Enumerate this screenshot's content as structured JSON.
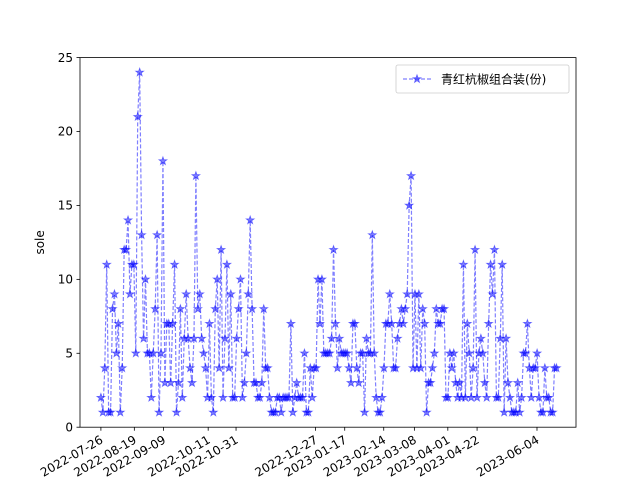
{
  "chart_data": {
    "type": "line",
    "title": "",
    "xlabel": "",
    "ylabel": "sole",
    "xlim": [
      "2022-07-11",
      "2023-07-02"
    ],
    "ylim": [
      0,
      25
    ],
    "x_ticks": [
      "2022-07-26",
      "2022-08-19",
      "2022-09-09",
      "2022-10-11",
      "2022-10-31",
      "2022-12-27",
      "2023-01-17",
      "2023-02-14",
      "2023-03-08",
      "2023-04-01",
      "2023-04-22",
      "2023-06-04"
    ],
    "y_ticks": [
      0,
      5,
      10,
      15,
      20,
      25
    ],
    "grid": false,
    "legend": "top-right",
    "series": [
      {
        "name": "青红杭椒组合装(份)",
        "color": "#0000ff",
        "marker": "star",
        "line_style": "dashed",
        "values": [
          2,
          1,
          4,
          11,
          1,
          1,
          8,
          9,
          5,
          7,
          1,
          4,
          12,
          12,
          14,
          9,
          11,
          11,
          5,
          21,
          24,
          13,
          6,
          10,
          5,
          5,
          2,
          5,
          8,
          13,
          1,
          5,
          18,
          3,
          7,
          7,
          3,
          7,
          11,
          1,
          3,
          8,
          2,
          6,
          9,
          6,
          4,
          3,
          6,
          17,
          8,
          9,
          6,
          5,
          4,
          2,
          7,
          2,
          1,
          8,
          10,
          4,
          12,
          2,
          6,
          11,
          4,
          9,
          2,
          2,
          6,
          8,
          10,
          2,
          3,
          5,
          9,
          14,
          8,
          3,
          3,
          2,
          2,
          3,
          8,
          4,
          4,
          2,
          1,
          1,
          1,
          2,
          2,
          1,
          2,
          2,
          2,
          2,
          7,
          1,
          2,
          3,
          2,
          2,
          2,
          5,
          1,
          1,
          4,
          2,
          4,
          4,
          10,
          7,
          10,
          5,
          5,
          5,
          5,
          6,
          12,
          7,
          4,
          6,
          5,
          5,
          5,
          5,
          4,
          3,
          7,
          7,
          4,
          3,
          5,
          5,
          1,
          6,
          5,
          5,
          13,
          5,
          2,
          1,
          1,
          2,
          4,
          7,
          7,
          9,
          7,
          4,
          4,
          6,
          7,
          8,
          7,
          8,
          9,
          15,
          17,
          4,
          9,
          4,
          9,
          4,
          8,
          7,
          1,
          3,
          3,
          4,
          5,
          8,
          7,
          7,
          8,
          8,
          2,
          2,
          5,
          4,
          5,
          3,
          2,
          3,
          2,
          11,
          2,
          7,
          5,
          2,
          4,
          12,
          2,
          5,
          6,
          5,
          3,
          2,
          7,
          11,
          9,
          12,
          2,
          2,
          6,
          11,
          1,
          6,
          3,
          2,
          1,
          1,
          1,
          3,
          1,
          2,
          5,
          5,
          7,
          4,
          2,
          4,
          4,
          5,
          2,
          1,
          1,
          4,
          2,
          2,
          1,
          1,
          4,
          4
        ]
      }
    ]
  }
}
